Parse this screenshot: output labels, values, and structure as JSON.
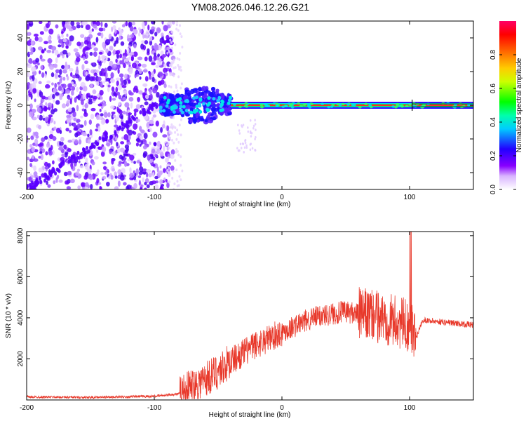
{
  "title": "YM08.2026.046.12.26.G21",
  "chart_data": [
    {
      "type": "heatmap",
      "name": "spectrogram",
      "xlabel": "Height of straight line (km)",
      "ylabel": "Frequency (Hz)",
      "xlim": [
        -200,
        150
      ],
      "ylim": [
        -50,
        50
      ],
      "xticks": [
        -200,
        -100,
        0,
        100
      ],
      "yticks": [
        -40,
        -20,
        0,
        20,
        40
      ],
      "colorbar": {
        "label": "Normalized spectral amplitude",
        "range": [
          0,
          1
        ],
        "ticks": [
          "0.0",
          "0.2",
          "0.4",
          "0.6",
          "0.8"
        ],
        "colors": [
          "#ffffff",
          "#8800ff",
          "#0000ff",
          "#00ffff",
          "#00ff00",
          "#ffff00",
          "#ff8800",
          "#ff0000",
          "#ff0066"
        ]
      },
      "regions": [
        {
          "name": "noise",
          "x": [
            -200,
            -85
          ],
          "freq_range": [
            -50,
            50
          ],
          "amplitude": 0.1
        },
        {
          "name": "transition",
          "x": [
            -95,
            -40
          ],
          "freq_range": [
            -25,
            15
          ],
          "amplitude": 0.3
        },
        {
          "name": "carrier",
          "x": [
            -40,
            150
          ],
          "freq": 0,
          "amplitude": 0.9
        }
      ],
      "trend_line": {
        "x": [
          -200,
          -90
        ],
        "freq": [
          -50,
          5
        ]
      }
    },
    {
      "type": "line",
      "name": "snr",
      "xlabel": "Height of straight line (km)",
      "ylabel": "SNR (10 * v/v)",
      "xlim": [
        -200,
        150
      ],
      "ylim": [
        0,
        8200
      ],
      "xticks": [
        -200,
        -100,
        0,
        100
      ],
      "yticks": [
        2000,
        4000,
        6000,
        8000
      ],
      "series": [
        {
          "name": "SNR",
          "color": "#e8392b",
          "envelope_x": [
            -200,
            -150,
            -100,
            -80,
            -70,
            -60,
            -50,
            -40,
            -30,
            -20,
            -10,
            0,
            10,
            20,
            30,
            40,
            50,
            60,
            70,
            80,
            90,
            100,
            105,
            110,
            150
          ],
          "envelope_y": [
            150,
            120,
            180,
            300,
            700,
            1000,
            1400,
            1900,
            2300,
            2700,
            3000,
            3300,
            3600,
            3900,
            4100,
            4200,
            4300,
            4200,
            4100,
            4000,
            3800,
            3600,
            3000,
            3900,
            3650
          ]
        }
      ]
    }
  ]
}
